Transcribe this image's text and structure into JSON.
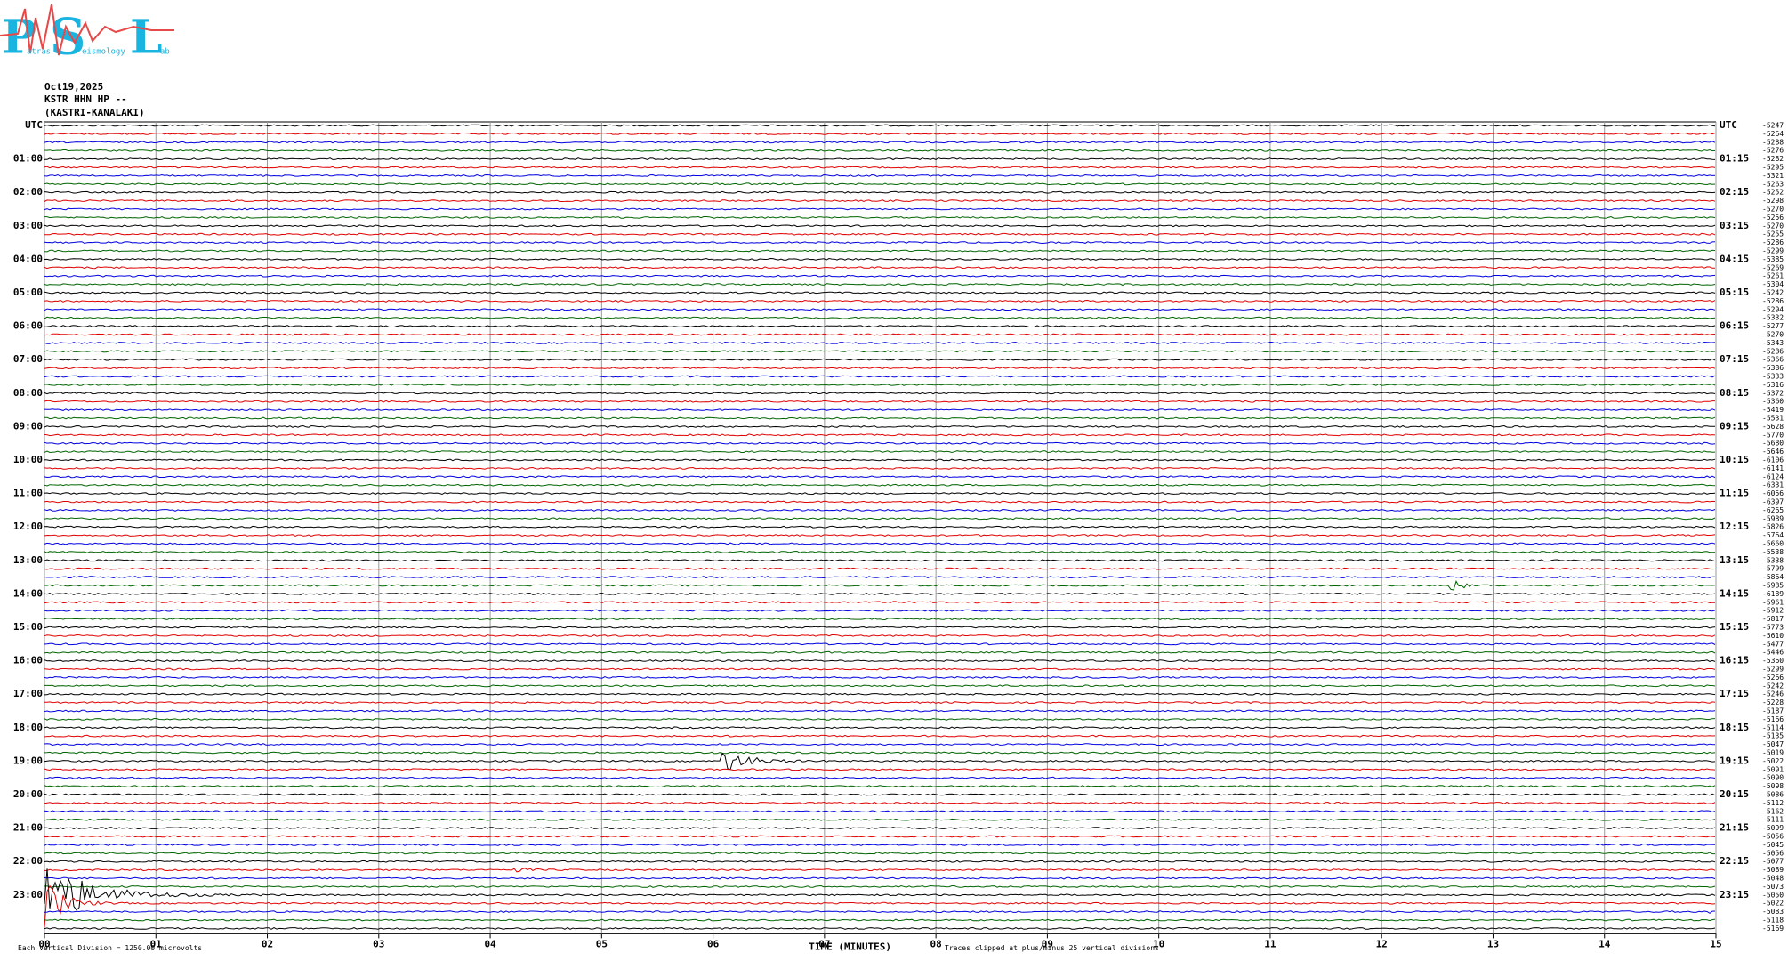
{
  "logo": {
    "letters": [
      "P",
      "S",
      "L"
    ],
    "words": [
      "atras",
      "eismology",
      "ab"
    ]
  },
  "header": {
    "date": "Oct19,2025",
    "station": "KSTR HHN HP --",
    "site": "(KASTRI-KANALAKI)"
  },
  "chart_data": {
    "type": "helicorder",
    "left_labels": [
      "UTC",
      "01:00",
      "02:00",
      "03:00",
      "04:00",
      "05:00",
      "06:00",
      "07:00",
      "08:00",
      "09:00",
      "10:00",
      "11:00",
      "12:00",
      "13:00",
      "14:00",
      "15:00",
      "16:00",
      "17:00",
      "18:00",
      "19:00",
      "20:00",
      "21:00",
      "22:00",
      "23:00"
    ],
    "right_labels": [
      "UTC",
      "01:15",
      "02:15",
      "03:15",
      "04:15",
      "05:15",
      "06:15",
      "07:15",
      "08:15",
      "09:15",
      "10:15",
      "11:15",
      "12:15",
      "13:15",
      "14:15",
      "15:15",
      "16:15",
      "17:15",
      "18:15",
      "19:15",
      "20:15",
      "21:15",
      "22:15",
      "23:15"
    ],
    "trace_colors": [
      "#000000",
      "#e00000",
      "#0000e0",
      "#006400"
    ],
    "offsets": [
      -5247,
      -5264,
      -5288,
      -5276,
      -5282,
      -5295,
      -5321,
      -5263,
      -5252,
      -5298,
      -5270,
      -5256,
      -5270,
      -5255,
      -5286,
      -5299,
      -5385,
      -5269,
      -5261,
      -5304,
      -5242,
      -5286,
      -5294,
      -5332,
      -5277,
      -5270,
      -5343,
      -5286,
      -5366,
      -5386,
      -5333,
      -5316,
      -5372,
      -5360,
      -5419,
      -5531,
      -5628,
      -5770,
      -5680,
      -5646,
      -6106,
      -6141,
      -6124,
      -6331,
      -6056,
      -6397,
      -6265,
      -5989,
      -5826,
      -5764,
      -5660,
      -5538,
      -5338,
      -5799,
      -5864,
      -5985,
      -6189,
      -5961,
      -5912,
      -5817,
      -5773,
      -5610,
      -5477,
      -5446,
      -5360,
      -5299,
      -5266,
      -5242,
      -5246,
      -5228,
      -5187,
      -5166,
      -5114,
      -5135,
      -5047,
      -5019,
      -5022,
      -5091,
      -5090,
      -5098,
      -5086,
      -5112,
      -5162,
      -5111,
      -5099,
      -5056,
      -5045,
      -5056,
      -5077,
      -5089,
      -5048,
      -5073,
      -5050,
      -5022,
      -5083,
      -5118,
      -5169
    ],
    "xlim": [
      0,
      15
    ],
    "xticks": [
      {
        "value": 0,
        "label": "00"
      },
      {
        "value": 1,
        "label": "01"
      },
      {
        "value": 2,
        "label": "02"
      },
      {
        "value": 3,
        "label": "03"
      },
      {
        "value": 4,
        "label": "04"
      },
      {
        "value": 5,
        "label": "05"
      },
      {
        "value": 6,
        "label": "06"
      },
      {
        "value": 7,
        "label": "07"
      },
      {
        "value": 8,
        "label": "08"
      },
      {
        "value": 9,
        "label": "09"
      },
      10,
      11,
      12,
      13,
      14,
      15
    ],
    "x_label": "TIME (MINUTES)",
    "scale_note": "Each Vertical Division = 1250.00 microvolts",
    "clip_note": "Traces clipped at plus/minus 25 vertical divisions",
    "grid": true
  }
}
